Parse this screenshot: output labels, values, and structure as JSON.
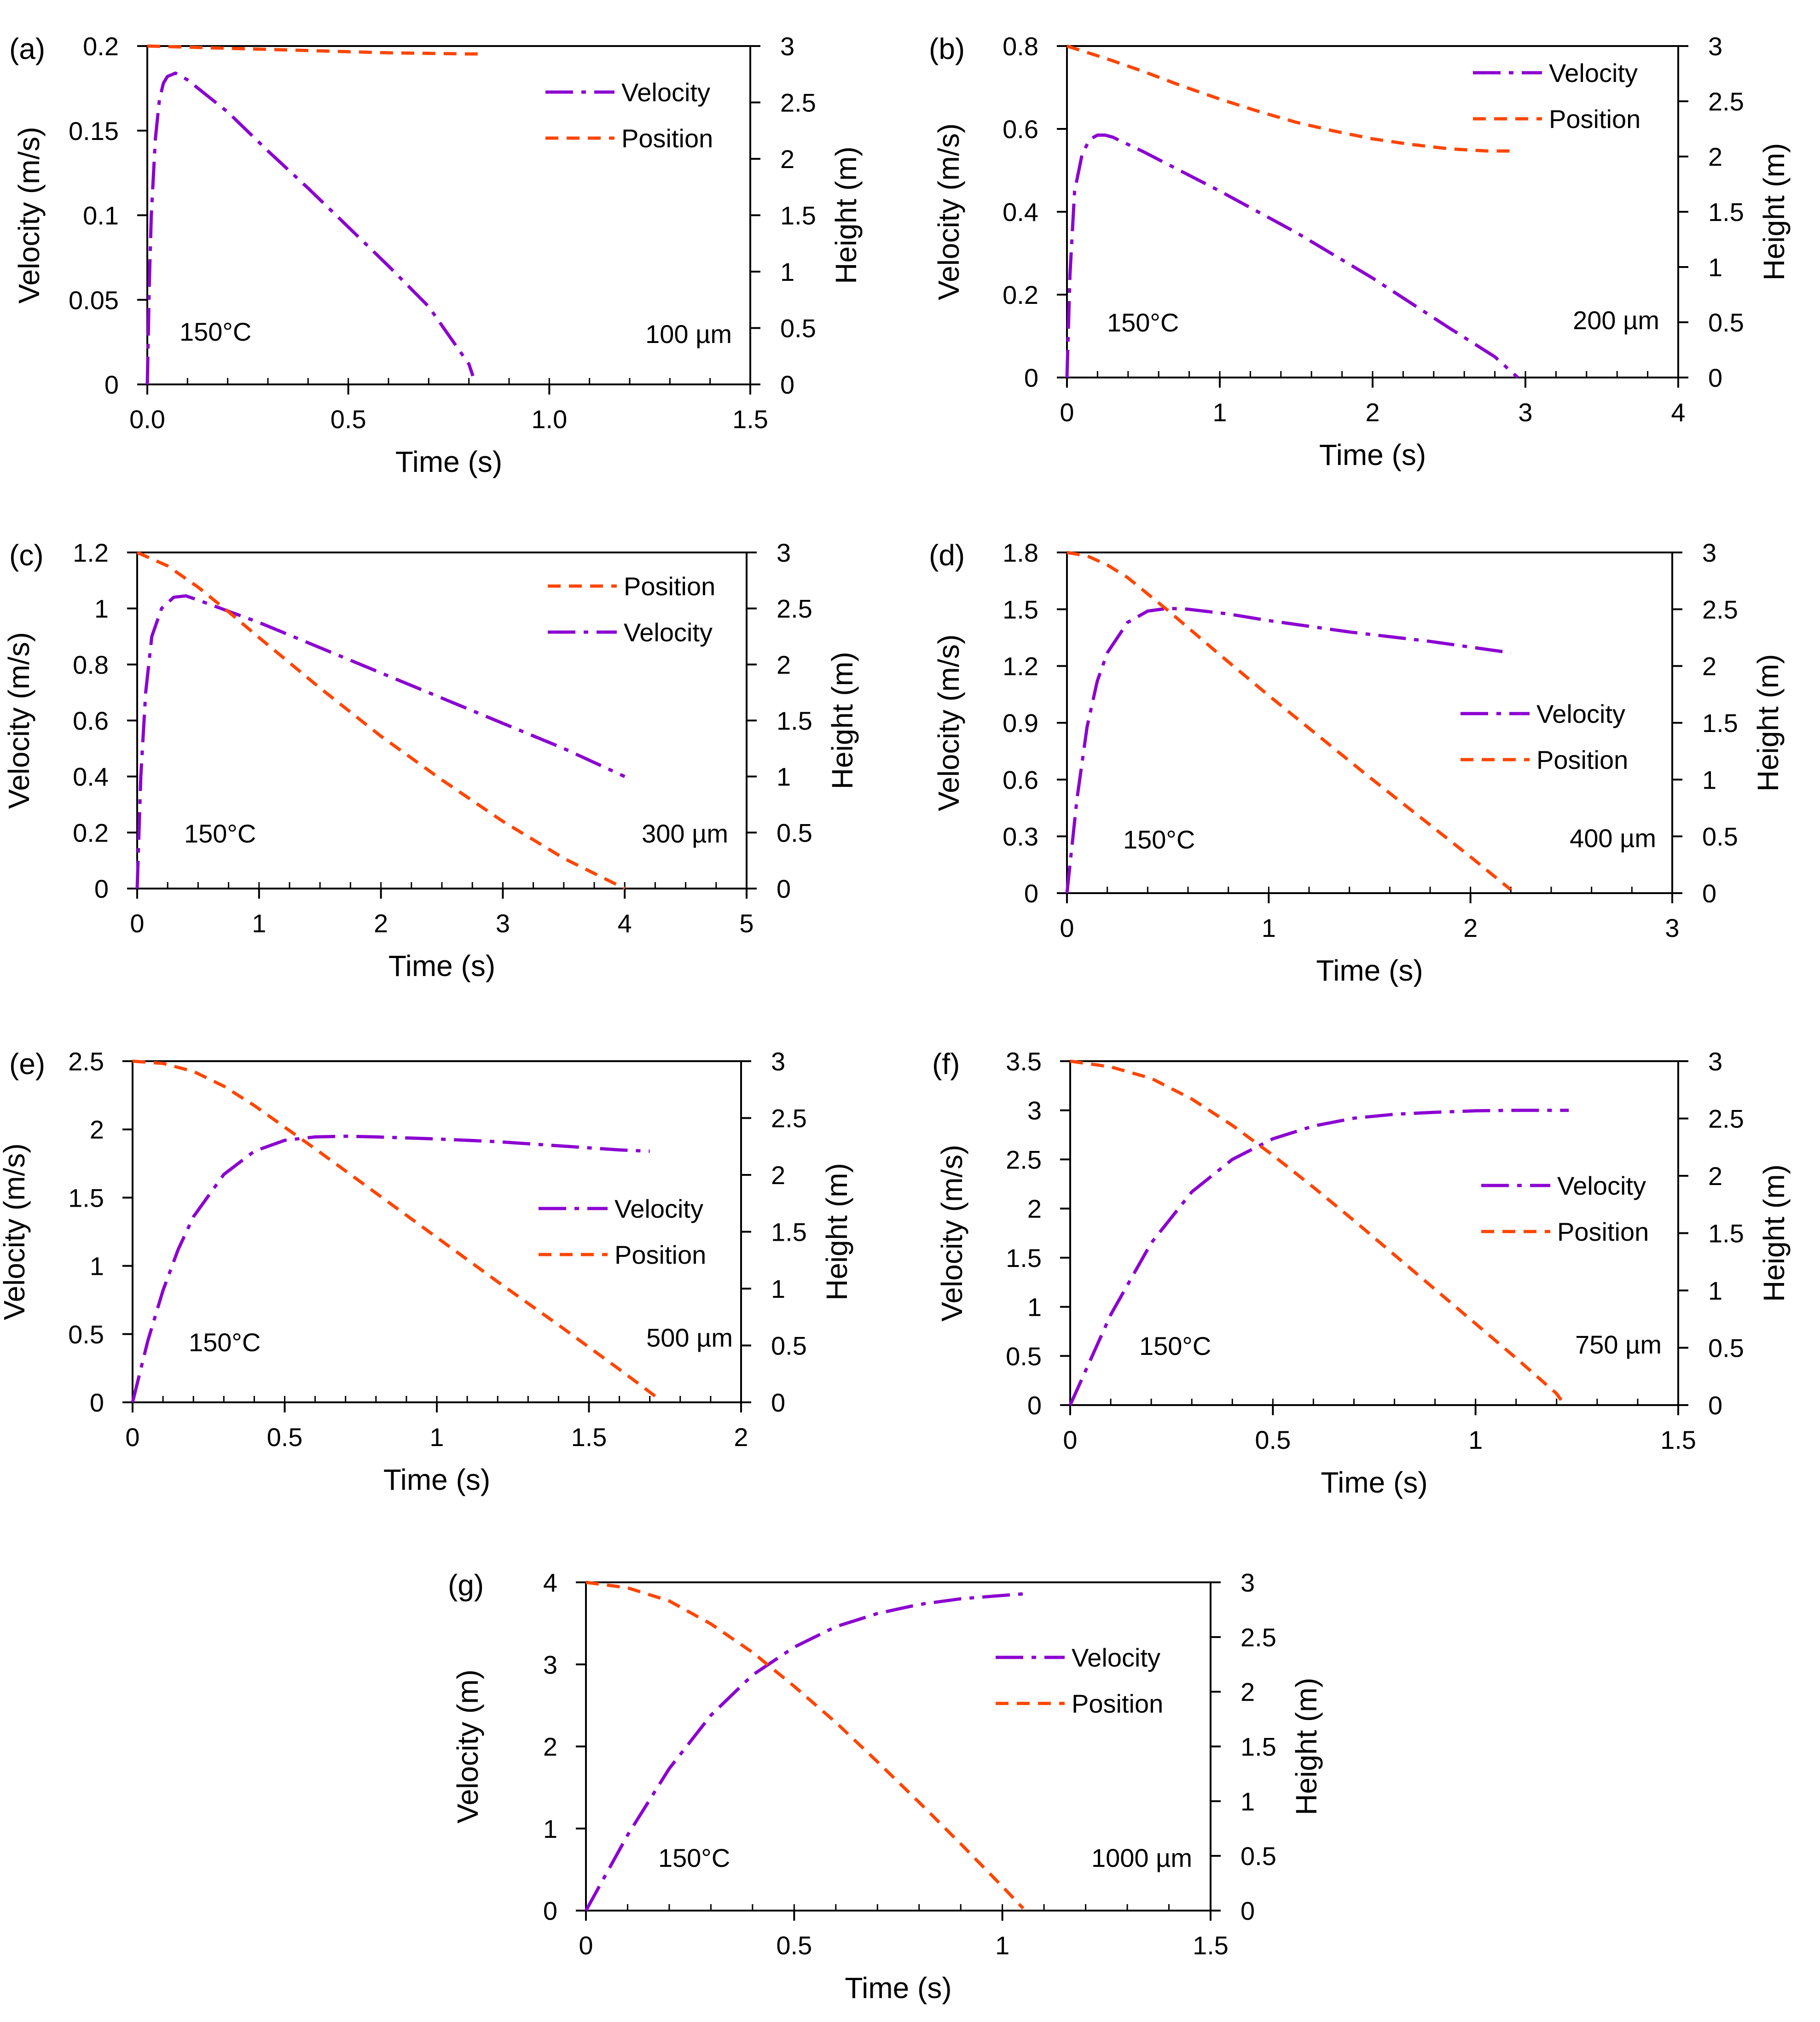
{
  "figure": {
    "colors": {
      "velocity": "#8B00D1",
      "position": "#FF4500",
      "axis": "#000000"
    }
  },
  "chart_data": [
    {
      "panel_label": "(a)",
      "type": "line",
      "xlabel": "Time (s)",
      "ylabel": "Velocity (m/s)",
      "y2label": "Height (m)",
      "xlim": [
        0,
        1.5
      ],
      "xticks": [
        "0.0",
        "0.5",
        "1.0",
        "1.5"
      ],
      "xtick_values": [
        0,
        0.5,
        1.0,
        1.5
      ],
      "xminor": 0.1,
      "ylim": [
        0,
        0.2
      ],
      "yticks": [
        "0",
        "0.05",
        "0.1",
        "0.15",
        "0.2"
      ],
      "ytick_values": [
        0,
        0.05,
        0.1,
        0.15,
        0.2
      ],
      "y2lim": [
        0,
        3
      ],
      "y2ticks": [
        "0",
        "0.5",
        "1",
        "1.5",
        "2",
        "2.5",
        "3"
      ],
      "y2tick_values": [
        0,
        0.5,
        1,
        1.5,
        2,
        2.5,
        3
      ],
      "temperature_label": "150°C",
      "size_label": "100 µm",
      "legend": [
        "Velocity",
        "Position"
      ],
      "legend_loc": "top-right",
      "series": [
        {
          "name": "Velocity",
          "axis": "left",
          "x": [
            0,
            0.005,
            0.01,
            0.02,
            0.03,
            0.04,
            0.05,
            0.07,
            0.1,
            0.2,
            0.3,
            0.4,
            0.5,
            0.6,
            0.7,
            0.8,
            0.81
          ],
          "y": [
            0,
            0.06,
            0.1,
            0.145,
            0.168,
            0.178,
            0.182,
            0.184,
            0.18,
            0.161,
            0.138,
            0.116,
            0.093,
            0.07,
            0.046,
            0.012,
            0.005
          ]
        },
        {
          "name": "Position",
          "axis": "right",
          "x": [
            0,
            0.1,
            0.2,
            0.3,
            0.4,
            0.5,
            0.6,
            0.7,
            0.8,
            0.84
          ],
          "y": [
            3.0,
            2.99,
            2.98,
            2.97,
            2.96,
            2.95,
            2.94,
            2.935,
            2.93,
            2.93
          ]
        }
      ]
    },
    {
      "panel_label": "(b)",
      "type": "line",
      "xlabel": "Time (s)",
      "ylabel": "Velocity (m/s)",
      "y2label": "Height (m)",
      "xlim": [
        0,
        4
      ],
      "xticks": [
        "0",
        "1",
        "2",
        "3",
        "4"
      ],
      "xtick_values": [
        0,
        1,
        2,
        3,
        4
      ],
      "xminor": 0.2,
      "ylim": [
        0,
        0.8
      ],
      "yticks": [
        "0",
        "0.2",
        "0.4",
        "0.6",
        "0.8"
      ],
      "ytick_values": [
        0,
        0.2,
        0.4,
        0.6,
        0.8
      ],
      "y2lim": [
        0,
        3
      ],
      "y2ticks": [
        "0",
        "0.5",
        "1",
        "1.5",
        "2",
        "2.5",
        "3"
      ],
      "y2tick_values": [
        0,
        0.5,
        1,
        1.5,
        2,
        2.5,
        3
      ],
      "temperature_label": "150°C",
      "size_label": "200 µm",
      "legend": [
        "Velocity",
        "Position"
      ],
      "legend_loc": "top-right",
      "series": [
        {
          "name": "Velocity",
          "axis": "left",
          "x": [
            0,
            0.02,
            0.05,
            0.1,
            0.15,
            0.2,
            0.25,
            0.3,
            0.5,
            1.0,
            1.5,
            2.0,
            2.5,
            2.8,
            2.95
          ],
          "y": [
            0,
            0.25,
            0.45,
            0.54,
            0.575,
            0.585,
            0.585,
            0.58,
            0.545,
            0.45,
            0.35,
            0.24,
            0.12,
            0.05,
            0.0
          ]
        },
        {
          "name": "Position",
          "axis": "right",
          "x": [
            0,
            0.25,
            0.5,
            0.75,
            1.0,
            1.25,
            1.5,
            1.75,
            2.0,
            2.25,
            2.5,
            2.75,
            2.95
          ],
          "y": [
            3.0,
            2.89,
            2.77,
            2.64,
            2.52,
            2.41,
            2.31,
            2.23,
            2.16,
            2.11,
            2.07,
            2.05,
            2.05
          ]
        }
      ]
    },
    {
      "panel_label": "(c)",
      "type": "line",
      "xlabel": "Time (s)",
      "ylabel": "Velocity (m/s)",
      "y2label": "Height (m)",
      "xlim": [
        0,
        5
      ],
      "xticks": [
        "0",
        "1",
        "2",
        "3",
        "4",
        "5"
      ],
      "xtick_values": [
        0,
        1,
        2,
        3,
        4,
        5
      ],
      "xminor": 0.25,
      "ylim": [
        0,
        1.2
      ],
      "yticks": [
        "0",
        "0.2",
        "0.4",
        "0.6",
        "0.8",
        "1",
        "1.2"
      ],
      "ytick_values": [
        0,
        0.2,
        0.4,
        0.6,
        0.8,
        1.0,
        1.2
      ],
      "y2lim": [
        0,
        3
      ],
      "y2ticks": [
        "0",
        "0.5",
        "1",
        "1.5",
        "2",
        "2.5",
        "3"
      ],
      "y2tick_values": [
        0,
        0.5,
        1,
        1.5,
        2,
        2.5,
        3
      ],
      "temperature_label": "150°C",
      "size_label": "300 µm",
      "legend": [
        "Position",
        "Velocity"
      ],
      "legend_loc": "top-right",
      "series": [
        {
          "name": "Velocity",
          "axis": "left",
          "x": [
            0,
            0.03,
            0.07,
            0.12,
            0.2,
            0.3,
            0.4,
            0.5,
            1.0,
            1.5,
            2.0,
            2.5,
            3.0,
            3.5,
            4.0
          ],
          "y": [
            0,
            0.4,
            0.7,
            0.9,
            1.0,
            1.04,
            1.045,
            1.03,
            0.95,
            0.86,
            0.77,
            0.68,
            0.59,
            0.5,
            0.4
          ]
        },
        {
          "name": "Position",
          "axis": "right",
          "x": [
            0,
            0.25,
            0.5,
            0.75,
            1.0,
            1.5,
            2.0,
            2.5,
            3.0,
            3.5,
            4.0
          ],
          "y": [
            3.0,
            2.88,
            2.69,
            2.47,
            2.24,
            1.79,
            1.36,
            0.97,
            0.6,
            0.27,
            0.0
          ]
        }
      ]
    },
    {
      "panel_label": "(d)",
      "type": "line",
      "xlabel": "Time (s)",
      "ylabel": "Velocity (m/s)",
      "y2label": "Height (m)",
      "xlim": [
        0,
        3
      ],
      "xticks": [
        "0",
        "1",
        "2",
        "3"
      ],
      "xtick_values": [
        0,
        1,
        2,
        3
      ],
      "xminor": 0.2,
      "ylim": [
        0,
        1.8
      ],
      "yticks": [
        "0",
        "0.3",
        "0.6",
        "0.9",
        "1.2",
        "1.5",
        "1.8"
      ],
      "ytick_values": [
        0,
        0.3,
        0.6,
        0.9,
        1.2,
        1.5,
        1.8
      ],
      "y2lim": [
        0,
        3
      ],
      "y2ticks": [
        "0",
        "0.5",
        "1",
        "1.5",
        "2",
        "2.5",
        "3"
      ],
      "y2tick_values": [
        0,
        0.5,
        1,
        1.5,
        2,
        2.5,
        3
      ],
      "temperature_label": "150°C",
      "size_label": "400 µm",
      "legend": [
        "Velocity",
        "Position"
      ],
      "legend_loc": "center-right",
      "series": [
        {
          "name": "Velocity",
          "axis": "left",
          "x": [
            0,
            0.05,
            0.1,
            0.15,
            0.2,
            0.3,
            0.4,
            0.5,
            0.6,
            0.8,
            1.0,
            1.4,
            1.8,
            2.2
          ],
          "y": [
            0,
            0.5,
            0.88,
            1.12,
            1.27,
            1.43,
            1.49,
            1.505,
            1.5,
            1.475,
            1.44,
            1.38,
            1.33,
            1.27
          ]
        },
        {
          "name": "Position",
          "axis": "right",
          "x": [
            0,
            0.1,
            0.2,
            0.3,
            0.5,
            0.75,
            1.0,
            1.25,
            1.5,
            1.75,
            2.0,
            2.2
          ],
          "y": [
            3.0,
            2.97,
            2.89,
            2.78,
            2.49,
            2.11,
            1.74,
            1.38,
            1.02,
            0.67,
            0.32,
            0.03
          ]
        }
      ]
    },
    {
      "panel_label": "(e)",
      "type": "line",
      "xlabel": "Time (s)",
      "ylabel": "Velocity (m/s)",
      "y2label": "Height (m)",
      "xlim": [
        0,
        2
      ],
      "xticks": [
        "0",
        "0.5",
        "1",
        "1.5",
        "2"
      ],
      "xtick_values": [
        0,
        0.5,
        1,
        1.5,
        2
      ],
      "xminor": 0.1,
      "ylim": [
        0,
        2.5
      ],
      "yticks": [
        "0",
        "0.5",
        "1",
        "1.5",
        "2",
        "2.5"
      ],
      "ytick_values": [
        0,
        0.5,
        1,
        1.5,
        2,
        2.5
      ],
      "y2lim": [
        0,
        3
      ],
      "y2ticks": [
        "0",
        "0.5",
        "1",
        "1.5",
        "2",
        "2.5",
        "3"
      ],
      "y2tick_values": [
        0,
        0.5,
        1,
        1.5,
        2,
        2.5,
        3
      ],
      "temperature_label": "150°C",
      "size_label": "500 µm",
      "legend": [
        "Velocity",
        "Position"
      ],
      "legend_loc": "center-right",
      "series": [
        {
          "name": "Velocity",
          "axis": "left",
          "x": [
            0,
            0.05,
            0.1,
            0.15,
            0.2,
            0.3,
            0.4,
            0.5,
            0.6,
            0.7,
            0.8,
            1.0,
            1.2,
            1.4,
            1.6,
            1.7
          ],
          "y": [
            0,
            0.45,
            0.82,
            1.12,
            1.36,
            1.67,
            1.84,
            1.92,
            1.945,
            1.95,
            1.945,
            1.93,
            1.91,
            1.88,
            1.85,
            1.84
          ]
        },
        {
          "name": "Position",
          "axis": "right",
          "x": [
            0,
            0.1,
            0.2,
            0.3,
            0.4,
            0.5,
            0.6,
            0.8,
            1.0,
            1.2,
            1.4,
            1.6,
            1.72
          ],
          "y": [
            3.0,
            2.98,
            2.91,
            2.78,
            2.61,
            2.42,
            2.23,
            1.84,
            1.45,
            1.06,
            0.68,
            0.29,
            0.05
          ]
        }
      ]
    },
    {
      "panel_label": "(f)",
      "type": "line",
      "xlabel": "Time (s)",
      "ylabel": "Velocity (m/s)",
      "y2label": "Height (m)",
      "xlim": [
        0,
        1.5
      ],
      "xticks": [
        "0",
        "0.5",
        "1",
        "1.5"
      ],
      "xtick_values": [
        0,
        0.5,
        1,
        1.5
      ],
      "xminor": 0.1,
      "ylim": [
        0,
        3.5
      ],
      "yticks": [
        "0",
        "0.5",
        "1",
        "1.5",
        "2",
        "2.5",
        "3",
        "3.5"
      ],
      "ytick_values": [
        0,
        0.5,
        1,
        1.5,
        2,
        2.5,
        3,
        3.5
      ],
      "y2lim": [
        0,
        3
      ],
      "y2ticks": [
        "0",
        "0.5",
        "1",
        "1.5",
        "2",
        "2.5",
        "3"
      ],
      "y2tick_values": [
        0,
        0.5,
        1,
        1.5,
        2,
        2.5,
        3
      ],
      "temperature_label": "150°C",
      "size_label": "750 µm",
      "legend": [
        "Velocity",
        "Position"
      ],
      "legend_loc": "center-right",
      "series": [
        {
          "name": "Velocity",
          "axis": "left",
          "x": [
            0,
            0.1,
            0.2,
            0.3,
            0.4,
            0.5,
            0.6,
            0.7,
            0.8,
            0.9,
            1.0,
            1.1,
            1.23
          ],
          "y": [
            0,
            0.92,
            1.65,
            2.17,
            2.5,
            2.71,
            2.84,
            2.92,
            2.96,
            2.98,
            2.995,
            3.0,
            3.0
          ]
        },
        {
          "name": "Position",
          "axis": "right",
          "x": [
            0,
            0.1,
            0.2,
            0.3,
            0.4,
            0.5,
            0.6,
            0.7,
            0.8,
            0.9,
            1.0,
            1.1,
            1.2,
            1.22
          ],
          "y": [
            3.0,
            2.95,
            2.85,
            2.67,
            2.44,
            2.18,
            1.9,
            1.61,
            1.31,
            1.01,
            0.71,
            0.41,
            0.1,
            0.0
          ]
        }
      ]
    },
    {
      "panel_label": "(g)",
      "type": "line",
      "xlabel": "Time (s)",
      "ylabel": "Velocity (m)",
      "y2label": "Height (m)",
      "xlim": [
        0,
        1.5
      ],
      "xticks": [
        "0",
        "0.5",
        "1",
        "1.5"
      ],
      "xtick_values": [
        0,
        0.5,
        1,
        1.5
      ],
      "xminor": 0.1,
      "ylim": [
        0,
        4
      ],
      "yticks": [
        "0",
        "1",
        "2",
        "3",
        "4"
      ],
      "ytick_values": [
        0,
        1,
        2,
        3,
        4
      ],
      "y2lim": [
        0,
        3
      ],
      "y2ticks": [
        "0",
        "0.5",
        "1",
        "1.5",
        "2",
        "2.5",
        "3"
      ],
      "y2tick_values": [
        0,
        0.5,
        1,
        1.5,
        2,
        2.5,
        3
      ],
      "temperature_label": "150°C",
      "size_label": "1000 µm",
      "legend": [
        "Velocity",
        "Position"
      ],
      "legend_loc": "top-right",
      "series": [
        {
          "name": "Velocity",
          "axis": "left",
          "x": [
            0,
            0.1,
            0.2,
            0.3,
            0.4,
            0.5,
            0.6,
            0.7,
            0.8,
            0.9,
            1.0,
            1.05
          ],
          "y": [
            0,
            0.92,
            1.73,
            2.38,
            2.87,
            3.21,
            3.46,
            3.62,
            3.73,
            3.8,
            3.84,
            3.86
          ]
        },
        {
          "name": "Position",
          "axis": "right",
          "x": [
            0,
            0.1,
            0.2,
            0.3,
            0.4,
            0.5,
            0.6,
            0.7,
            0.8,
            0.9,
            1.0,
            1.05
          ],
          "y": [
            3.0,
            2.95,
            2.83,
            2.62,
            2.36,
            2.05,
            1.72,
            1.36,
            0.99,
            0.61,
            0.22,
            0.02
          ]
        }
      ]
    }
  ]
}
